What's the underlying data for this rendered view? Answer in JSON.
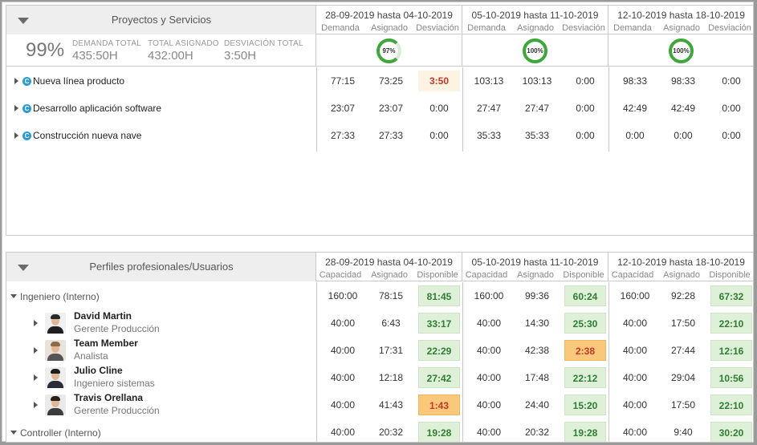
{
  "top_panel": {
    "title": "Proyectos y Servicios",
    "weeks": [
      {
        "range": "28-09-2019 hasta 04-10-2019",
        "cols": [
          "Demanda",
          "Asignado",
          "Desviación"
        ],
        "progress": "97%",
        "progress_value": 97
      },
      {
        "range": "05-10-2019 hasta 11-10-2019",
        "cols": [
          "Demanda",
          "Asignado",
          "Desviación"
        ],
        "progress": "100%",
        "progress_value": 100
      },
      {
        "range": "12-10-2019 hasta 18-10-2019",
        "cols": [
          "Demanda",
          "Asignado",
          "Desviación"
        ],
        "progress": "100%",
        "progress_value": 100
      }
    ],
    "summary": {
      "percent": "99%",
      "demand_label": "DEMANDA TOTAL",
      "demand_value": "435:50H",
      "assigned_label": "TOTAL ASIGNADO",
      "assigned_value": "432:00H",
      "deviation_label": "DESVIACIÓN TOTAL",
      "deviation_value": "3:50H"
    },
    "rows": [
      {
        "name": "Nueva línea producto",
        "badge": "C",
        "values": [
          "77:15",
          "73:25",
          "3:50",
          "103:13",
          "103:13",
          "0:00",
          "98:33",
          "98:33",
          "0:00"
        ]
      },
      {
        "name": "Desarrollo aplicación software",
        "badge": "C",
        "values": [
          "23:07",
          "23:07",
          "0:00",
          "27:47",
          "27:47",
          "0:00",
          "42:49",
          "42:49",
          "0:00"
        ]
      },
      {
        "name": "Construcción nueva nave",
        "badge": "C",
        "values": [
          "27:33",
          "27:33",
          "0:00",
          "35:33",
          "35:33",
          "0:00",
          "0:00",
          "0:00",
          "0:00"
        ]
      }
    ]
  },
  "bottom_panel": {
    "title": "Perfiles profesionales/Usuarios",
    "weeks": [
      {
        "range": "28-09-2019 hasta 04-10-2019",
        "cols": [
          "Capacidad",
          "Asignado",
          "Disponible"
        ]
      },
      {
        "range": "05-10-2019 hasta 11-10-2019",
        "cols": [
          "Capacidad",
          "Asignado",
          "Disponible"
        ]
      },
      {
        "range": "12-10-2019 hasta 18-10-2019",
        "cols": [
          "Capacidad",
          "Asignado",
          "Disponible"
        ]
      }
    ],
    "rows": [
      {
        "type": "group",
        "name": "Ingeniero (Interno)",
        "values": [
          "160:00",
          "78:15",
          "81:45",
          "160:00",
          "99:36",
          "60:24",
          "160:00",
          "92:28",
          "67:32"
        ],
        "status": [
          "green",
          "green",
          "green"
        ]
      },
      {
        "type": "user",
        "name": "David Martin",
        "role": "Gerente Producción",
        "values": [
          "40:00",
          "6:43",
          "33:17",
          "40:00",
          "14:30",
          "25:30",
          "40:00",
          "17:50",
          "22:10"
        ],
        "status": [
          "green",
          "green",
          "green"
        ]
      },
      {
        "type": "user",
        "name": "Team Member",
        "role": "Analista",
        "values": [
          "40:00",
          "17:31",
          "22:29",
          "40:00",
          "42:38",
          "2:38",
          "40:00",
          "27:44",
          "12:16"
        ],
        "status": [
          "green",
          "orange",
          "green"
        ]
      },
      {
        "type": "user",
        "name": "Julio Cline",
        "role": "Ingeniero sistemas",
        "values": [
          "40:00",
          "12:18",
          "27:42",
          "40:00",
          "17:48",
          "22:12",
          "40:00",
          "29:04",
          "10:56"
        ],
        "status": [
          "green",
          "green",
          "green"
        ]
      },
      {
        "type": "user",
        "name": "Travis Orellana",
        "role": "Gerente Producción",
        "values": [
          "40:00",
          "41:43",
          "1:43",
          "40:00",
          "24:40",
          "15:20",
          "40:00",
          "17:50",
          "22:10"
        ],
        "status": [
          "orange",
          "green",
          "green"
        ]
      },
      {
        "type": "group",
        "name": "Controller (Interno)",
        "values": [
          "40:00",
          "20:32",
          "19:28",
          "40:00",
          "20:32",
          "19:28",
          "40:00",
          "9:40",
          "30:20"
        ],
        "status": [
          "green",
          "green",
          "green"
        ]
      }
    ]
  },
  "icons": {
    "collapse": "collapse-triangle-icon",
    "expand": "expand-arrow-icon",
    "badge": "customer-badge-icon"
  },
  "colors": {
    "ok": "#3fa63a",
    "available_bg": "#dff0d8",
    "overload_bg": "#f9c87a",
    "deviation_text": "#c0392b"
  }
}
